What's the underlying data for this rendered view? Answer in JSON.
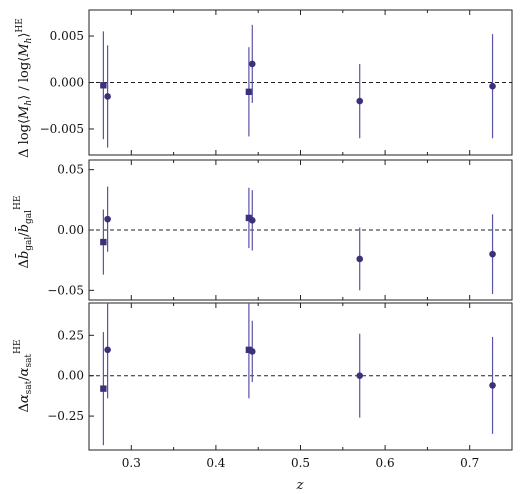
{
  "chart_data": [
    {
      "type": "scatter",
      "xlabel": "z",
      "ylabel": "Δ log⟨M_h⟩ / log⟨M_h⟩^HE",
      "xlim": [
        0.25,
        0.75
      ],
      "ylim": [
        -0.0078,
        0.0078
      ],
      "yticks": [
        -0.005,
        0.0,
        0.005
      ],
      "ytick_labels": [
        "−0.005",
        "0.000",
        "0.005"
      ],
      "reference_line": 0,
      "series": [
        {
          "marker": "square",
          "points": [
            {
              "x": 0.267,
              "y": -0.0003,
              "yerr": 0.0058
            },
            {
              "x": 0.439,
              "y": -0.001,
              "yerr": 0.0048
            }
          ]
        },
        {
          "marker": "circle",
          "points": [
            {
              "x": 0.272,
              "y": -0.0015,
              "yerr": 0.0055
            },
            {
              "x": 0.443,
              "y": 0.002,
              "yerr": 0.0042
            },
            {
              "x": 0.57,
              "y": -0.002,
              "yerr": 0.004
            },
            {
              "x": 0.727,
              "y": -0.0004,
              "yerr": 0.0056
            }
          ]
        }
      ]
    },
    {
      "type": "scatter",
      "xlabel": "z",
      "ylabel": "Δ b̄_gal / b̄_gal^HE",
      "xlim": [
        0.25,
        0.75
      ],
      "ylim": [
        -0.058,
        0.058
      ],
      "yticks": [
        -0.05,
        0.0,
        0.05
      ],
      "ytick_labels": [
        "−0.05",
        "0.00",
        "0.05"
      ],
      "reference_line": 0,
      "series": [
        {
          "marker": "square",
          "points": [
            {
              "x": 0.267,
              "y": -0.01,
              "yerr": 0.027
            },
            {
              "x": 0.439,
              "y": 0.01,
              "yerr": 0.025
            }
          ]
        },
        {
          "marker": "circle",
          "points": [
            {
              "x": 0.272,
              "y": 0.009,
              "yerr": 0.027
            },
            {
              "x": 0.443,
              "y": 0.008,
              "yerr": 0.025
            },
            {
              "x": 0.57,
              "y": -0.024,
              "yerr": 0.026
            },
            {
              "x": 0.727,
              "y": -0.02,
              "yerr": 0.033
            }
          ]
        }
      ]
    },
    {
      "type": "scatter",
      "xlabel": "z",
      "ylabel": "Δ α_sat / α_sat^HE",
      "xlim": [
        0.25,
        0.75
      ],
      "ylim": [
        -0.46,
        0.45
      ],
      "yticks": [
        -0.25,
        0.0,
        0.25
      ],
      "ytick_labels": [
        "−0.25",
        "0.00",
        "0.25"
      ],
      "reference_line": 0,
      "xticks": [
        0.3,
        0.4,
        0.5,
        0.6,
        0.7
      ],
      "xtick_labels": [
        "0.3",
        "0.4",
        "0.5",
        "0.6",
        "0.7"
      ],
      "series": [
        {
          "marker": "square",
          "points": [
            {
              "x": 0.267,
              "y": -0.08,
              "yerr": 0.35
            },
            {
              "x": 0.439,
              "y": 0.16,
              "yerr": 0.3
            }
          ]
        },
        {
          "marker": "circle",
          "points": [
            {
              "x": 0.272,
              "y": 0.16,
              "yerr": 0.3
            },
            {
              "x": 0.443,
              "y": 0.15,
              "yerr": 0.19
            },
            {
              "x": 0.57,
              "y": 0.0,
              "yerr": 0.26
            },
            {
              "x": 0.727,
              "y": -0.06,
              "yerr": 0.3
            }
          ]
        }
      ]
    }
  ],
  "colors": {
    "marker": "#3a3178",
    "errorbar": "#5a54a8",
    "axis": "#222222",
    "zero_line": "#222222"
  }
}
